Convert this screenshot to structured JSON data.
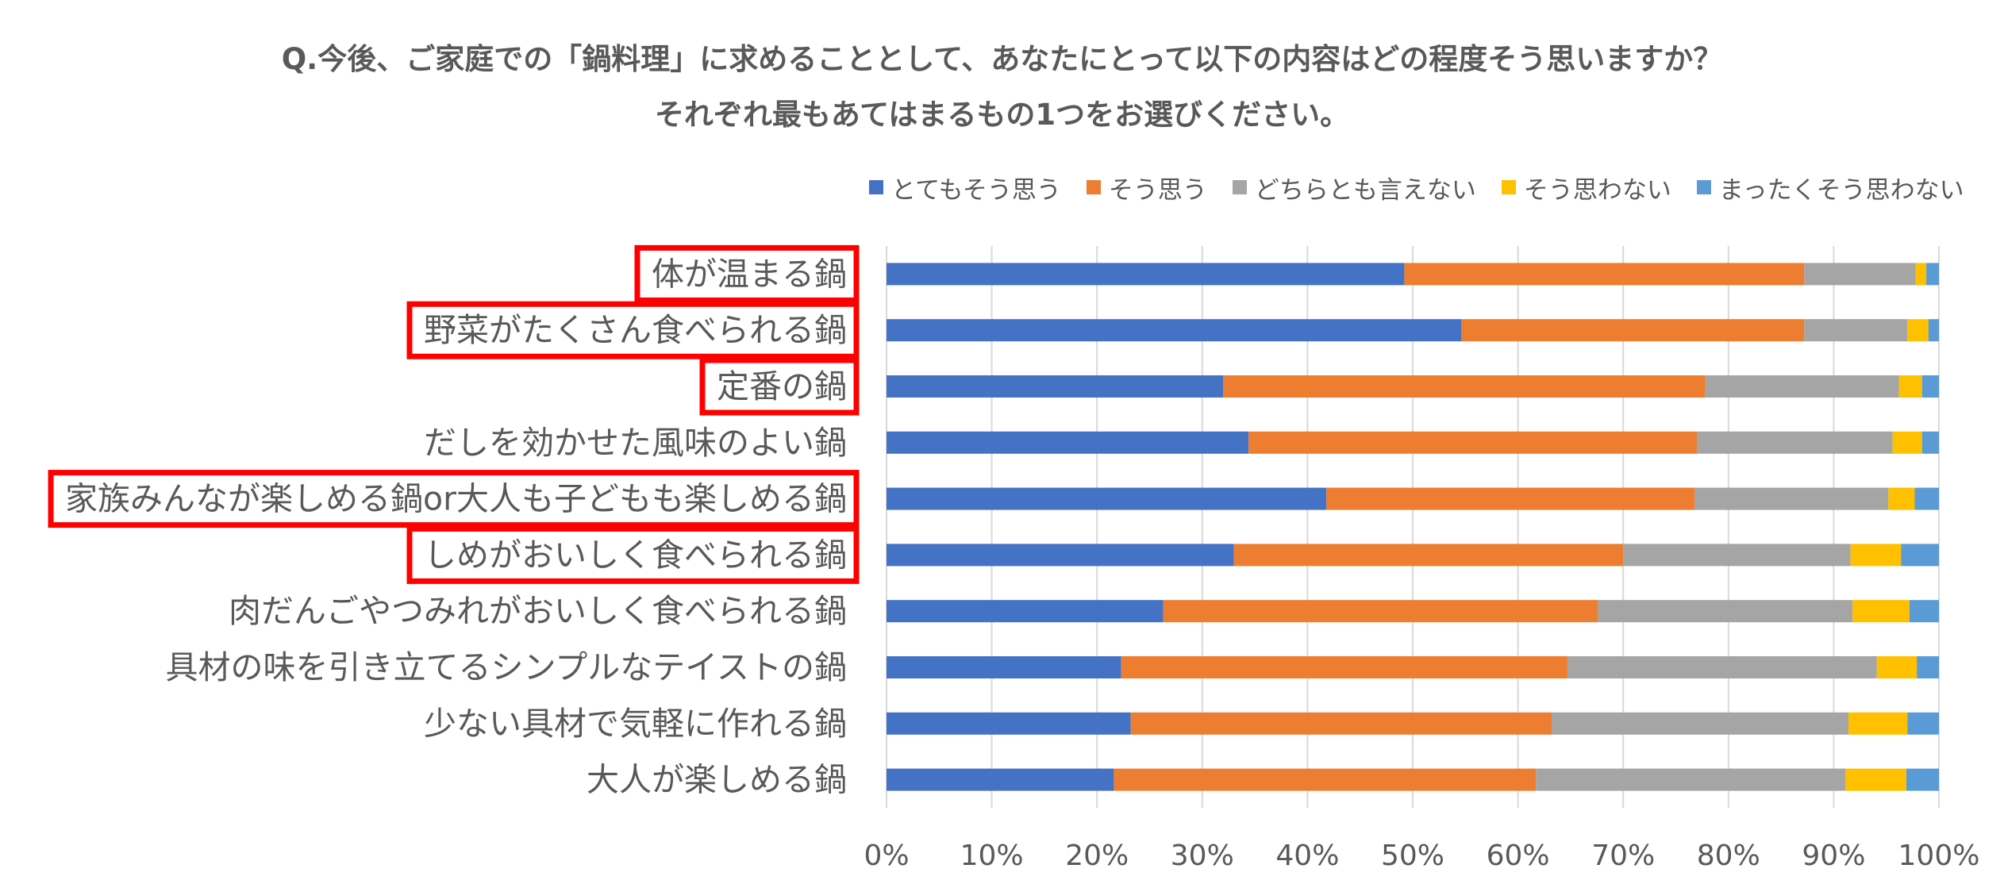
{
  "chart_data": {
    "type": "bar",
    "orientation": "horizontal",
    "stacked": "percent",
    "title": [
      "Q.今後、ご家庭での「鍋料理」に求めることとして、あなたにとって以下の内容はどの程度そう思いますか？",
      "それぞれ最もあてはまるもの1つをお選びください。"
    ],
    "categories": [
      "体が温まる鍋",
      "野菜がたくさん食べられる鍋",
      "定番の鍋",
      "だしを効かせた風味のよい鍋",
      "家族みんなが楽しめる鍋or大人も子どもも楽しめる鍋",
      "しめがおいしく食べられる鍋",
      "肉だんごやつみれがおいしく食べられる鍋",
      "具材の味を引き立てるシンプルなテイストの鍋",
      "少ない具材で気軽に作れる鍋",
      "大人が楽しめる鍋"
    ],
    "highlighted": [
      true,
      true,
      true,
      false,
      true,
      true,
      false,
      false,
      false,
      false
    ],
    "series": [
      {
        "name": "とてもそう思う",
        "color": "#4472C4",
        "values": [
          49.2,
          54.6,
          32.0,
          34.4,
          41.8,
          33.0,
          26.3,
          22.3,
          23.2,
          21.6
        ]
      },
      {
        "name": "そう思う",
        "color": "#ED7D31",
        "values": [
          38.0,
          32.6,
          45.8,
          42.6,
          35.0,
          37.0,
          41.3,
          42.4,
          40.0,
          40.1
        ]
      },
      {
        "name": "どちらとも言えない",
        "color": "#A5A5A5",
        "values": [
          10.6,
          9.8,
          18.4,
          18.6,
          18.4,
          21.6,
          24.2,
          29.4,
          28.2,
          29.4
        ]
      },
      {
        "name": "そう思わない",
        "color": "#FFC000",
        "values": [
          1.0,
          2.0,
          2.2,
          2.8,
          2.5,
          4.8,
          5.4,
          3.8,
          5.6,
          5.8
        ]
      },
      {
        "name": "まったくそう思わない",
        "color": "#5B9BD5",
        "values": [
          1.2,
          1.0,
          1.6,
          1.6,
          2.3,
          3.6,
          2.8,
          2.1,
          3.0,
          3.1
        ]
      }
    ],
    "xlim": [
      0,
      100
    ],
    "xticks": [
      "0%",
      "10%",
      "20%",
      "30%",
      "40%",
      "50%",
      "60%",
      "70%",
      "80%",
      "90%",
      "100%"
    ],
    "legend_position": "top-right",
    "highlight_color": "#FF0000"
  }
}
